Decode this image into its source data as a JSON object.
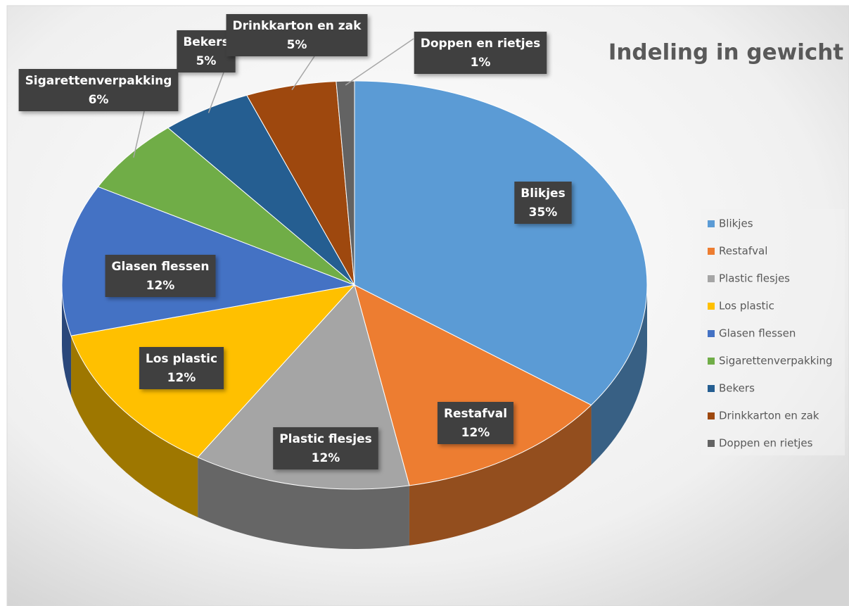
{
  "chart_data": {
    "type": "pie",
    "title": "Indeling in gewicht",
    "categories": [
      "Blikjes",
      "Restafval",
      "Plastic flesjes",
      "Los plastic",
      "Glasen flessen",
      "Sigarettenverpakking",
      "Bekers",
      "Drinkkarton en zak",
      "Doppen en rietjes"
    ],
    "values": [
      35,
      12,
      12,
      12,
      12,
      6,
      5,
      5,
      1
    ],
    "value_labels": [
      "35%",
      "12%",
      "12%",
      "12%",
      "12%",
      "6%",
      "5%",
      "5%",
      "1%"
    ],
    "colors": [
      "#5b9bd5",
      "#ed7d31",
      "#a5a5a5",
      "#ffc000",
      "#4472c4",
      "#70ad47",
      "#255e91",
      "#9e480e",
      "#636363"
    ],
    "legend": "right"
  }
}
